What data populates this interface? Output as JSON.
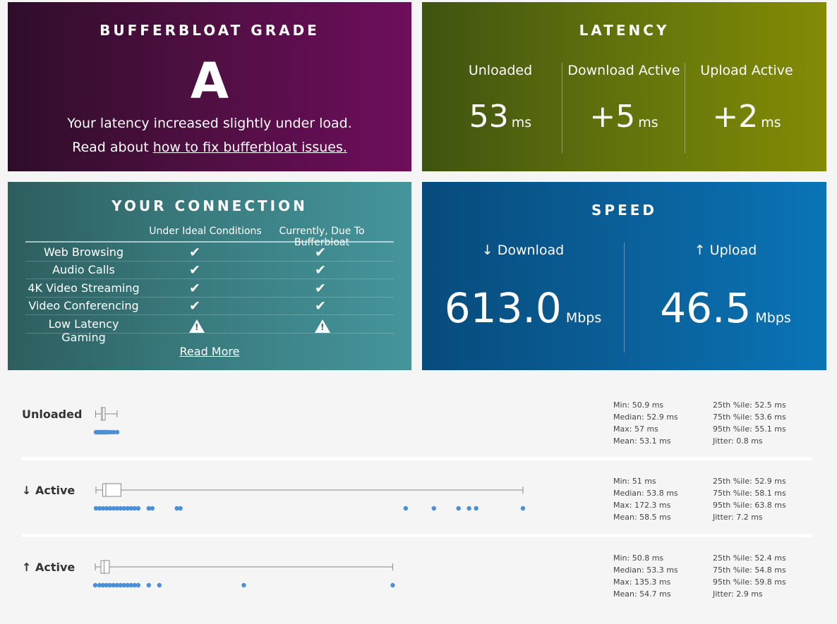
{
  "grade": {
    "title": "BUFFERBLOAT GRADE",
    "letter": "A",
    "description": "Your latency increased slightly under load.",
    "fix_prefix": "Read about ",
    "fix_link": "how to fix bufferbloat issues."
  },
  "latency": {
    "title": "LATENCY",
    "columns": [
      {
        "label": "Unloaded",
        "value": "53",
        "unit": "ms"
      },
      {
        "label": "Download Active",
        "value": "+5",
        "unit": "ms"
      },
      {
        "label": "Upload Active",
        "value": "+2",
        "unit": "ms"
      }
    ]
  },
  "connection": {
    "title": "YOUR CONNECTION",
    "col_ideal": "Under Ideal Conditions",
    "col_current": "Currently, Due To Bufferbloat",
    "rows": [
      {
        "label": "Web Browsing",
        "ideal": "ok",
        "current": "ok"
      },
      {
        "label": "Audio Calls",
        "ideal": "ok",
        "current": "ok"
      },
      {
        "label": "4K Video Streaming",
        "ideal": "ok",
        "current": "ok"
      },
      {
        "label": "Video Conferencing",
        "ideal": "ok",
        "current": "ok"
      },
      {
        "label": "Low Latency Gaming",
        "ideal": "warning",
        "current": "warning"
      }
    ],
    "read_more": "Read More",
    "check_glyph": "✔"
  },
  "speed": {
    "title": "SPEED",
    "download": {
      "label": "↓ Download",
      "value": "613.0",
      "unit": "Mbps"
    },
    "upload": {
      "label": "↑ Upload",
      "value": "46.5",
      "unit": "Mbps"
    }
  },
  "stats": [
    {
      "name": "Unloaded",
      "min": "Min: 50.9 ms",
      "median": "Median: 52.9 ms",
      "max": "Max: 57 ms",
      "mean": "Mean: 53.1 ms",
      "p25": "25th %ile: 52.5 ms",
      "p75": "75th %ile: 53.6 ms",
      "p95": "95th %ile: 55.1 ms",
      "jitter": "Jitter: 0.8 ms",
      "box": {
        "min": 50.9,
        "q1": 52.5,
        "median": 52.9,
        "q3": 53.6,
        "max": 57
      },
      "outliers": [
        51,
        51.3,
        51.6,
        52,
        52.2,
        52.5,
        52.8,
        53,
        53.3,
        53.6,
        54,
        54.4,
        55.1,
        56,
        57
      ]
    },
    {
      "name": "↓ Active",
      "min": "Min: 51 ms",
      "median": "Median: 53.8 ms",
      "max": "Max: 172.3 ms",
      "mean": "Mean: 58.5 ms",
      "p25": "25th %ile: 52.9 ms",
      "p75": "75th %ile: 58.1 ms",
      "p95": "95th %ile: 63.8 ms",
      "jitter": "Jitter: 7.2 ms",
      "box": {
        "min": 51,
        "q1": 52.9,
        "median": 53.8,
        "q3": 58.1,
        "max": 172.3
      },
      "outliers": [
        51,
        52,
        53,
        54,
        55,
        56,
        57,
        58,
        59,
        60,
        61,
        62,
        63,
        66,
        67,
        74,
        75,
        139,
        147,
        154,
        157,
        159,
        172.3
      ]
    },
    {
      "name": "↑ Active",
      "min": "Min: 50.8 ms",
      "median": "Median: 53.3 ms",
      "max": "Max: 135.3 ms",
      "mean": "Mean: 54.7 ms",
      "p25": "25th %ile: 52.4 ms",
      "p75": "75th %ile: 54.8 ms",
      "p95": "95th %ile: 59.8 ms",
      "jitter": "Jitter: 2.9 ms",
      "box": {
        "min": 50.8,
        "q1": 52.4,
        "median": 53.3,
        "q3": 54.8,
        "max": 135.3
      },
      "outliers": [
        50.8,
        52,
        53,
        54,
        55,
        56,
        57,
        58,
        59,
        60,
        61,
        62,
        63,
        66,
        69,
        93,
        135.3
      ]
    }
  ],
  "colors": {
    "dot": "#4a90d9",
    "box": "#888888"
  }
}
